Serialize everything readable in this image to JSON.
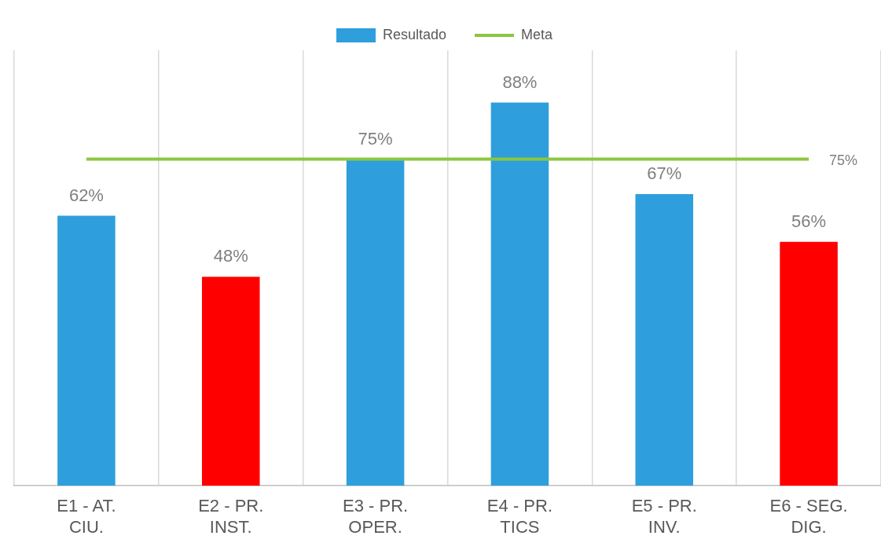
{
  "chart_data": {
    "type": "bar",
    "categories": [
      "E1 - AT. CIU.",
      "E2 - PR. INST.",
      "E3 - PR. OPER.",
      "E4 - PR. TICS",
      "E5 - PR. INV.",
      "E6 - SEG. DIG."
    ],
    "series": [
      {
        "name": "Resultado",
        "color": "#2e9fdc",
        "colors": [
          "#2e9fdc",
          "#ff0000",
          "#2e9fdc",
          "#2e9fdc",
          "#2e9fdc",
          "#ff0000"
        ],
        "values": [
          62,
          48,
          75,
          88,
          67,
          56
        ],
        "value_labels": [
          "62%",
          "48%",
          "75%",
          "88%",
          "67%",
          "56%"
        ]
      },
      {
        "name": "Meta",
        "type": "line",
        "color": "#8dc63f",
        "marker": "none",
        "values": [
          75,
          75,
          75,
          75,
          75,
          75
        ],
        "value_labels": [
          null,
          null,
          null,
          null,
          null,
          "75%"
        ]
      }
    ],
    "ylim": [
      0,
      100
    ],
    "grid": "x",
    "legend": "top"
  }
}
